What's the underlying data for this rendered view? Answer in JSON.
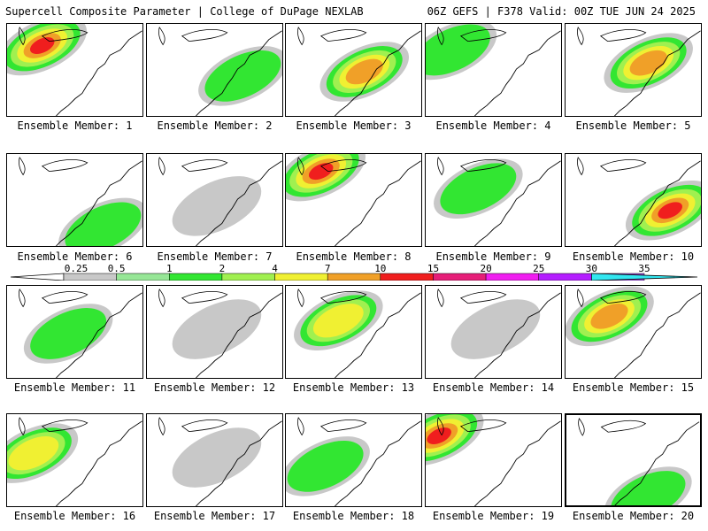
{
  "header": {
    "left": "Supercell Composite Parameter | College of DuPage NEXLAB",
    "right": "06Z GEFS | F378 Valid: 00Z TUE JUN 24 2025"
  },
  "caption_prefix": "Ensemble Member: ",
  "members": [
    {
      "label": "Ensemble Member: 1",
      "max": 10
    },
    {
      "label": "Ensemble Member: 2",
      "max": 1
    },
    {
      "label": "Ensemble Member: 3",
      "max": 7
    },
    {
      "label": "Ensemble Member: 4",
      "max": 1
    },
    {
      "label": "Ensemble Member: 5",
      "max": 7
    },
    {
      "label": "Ensemble Member: 6",
      "max": 1
    },
    {
      "label": "Ensemble Member: 7",
      "max": 0.25
    },
    {
      "label": "Ensemble Member: 8",
      "max": 10
    },
    {
      "label": "Ensemble Member: 9",
      "max": 1
    },
    {
      "label": "Ensemble Member: 10",
      "max": 10
    },
    {
      "label": "Ensemble Member: 11",
      "max": 1
    },
    {
      "label": "Ensemble Member: 12",
      "max": 0.25
    },
    {
      "label": "Ensemble Member: 13",
      "max": 4
    },
    {
      "label": "Ensemble Member: 14",
      "max": 0.25
    },
    {
      "label": "Ensemble Member: 15",
      "max": 7
    },
    {
      "label": "Ensemble Member: 16",
      "max": 4
    },
    {
      "label": "Ensemble Member: 17",
      "max": 0.25
    },
    {
      "label": "Ensemble Member: 18",
      "max": 1
    },
    {
      "label": "Ensemble Member: 19",
      "max": 10
    },
    {
      "label": "Ensemble Member: 20",
      "max": 1
    }
  ],
  "selected_member": 20,
  "colorbar": {
    "levels": [
      "0.25",
      "0.5",
      "1",
      "2",
      "4",
      "7",
      "10",
      "15",
      "20",
      "25",
      "30",
      "35"
    ],
    "colors": [
      "#c8c8c8",
      "#96e696",
      "#32e632",
      "#a0f050",
      "#f0f032",
      "#f0a028",
      "#f01e1e",
      "#e61e78",
      "#f01ef0",
      "#b41eff",
      "#a050e6",
      "#32e6f0"
    ]
  }
}
